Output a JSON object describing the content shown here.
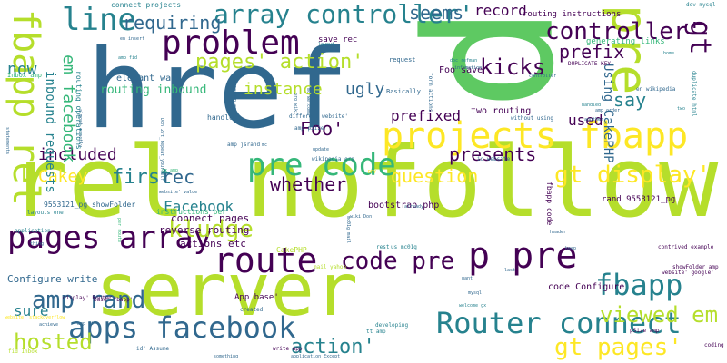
{
  "palette": {
    "dark_purple": "#440154",
    "blue": "#31688e",
    "teal": "#26828e",
    "green": "#35b779",
    "light_green": "#5ec962",
    "lime": "#b5de2b",
    "yellow": "#fde725"
  },
  "words": [
    {
      "text": "rel nofollow",
      "weight": 1.0
    },
    {
      "text": "href",
      "weight": 0.95
    },
    {
      "text": "p",
      "weight": 0.9
    },
    {
      "text": "server",
      "weight": 0.8
    },
    {
      "text": "pre",
      "weight": 0.7
    },
    {
      "text": "projects fbapp",
      "weight": 0.6
    },
    {
      "text": "fbapp rel",
      "weight": 0.55
    },
    {
      "text": "pages array",
      "weight": 0.5
    },
    {
      "text": "route",
      "weight": 0.5
    },
    {
      "text": "p pre",
      "weight": 0.5
    },
    {
      "text": "apps facebook",
      "weight": 0.5
    },
    {
      "text": "Router connect",
      "weight": 0.45
    },
    {
      "text": "problem",
      "weight": 0.45
    },
    {
      "text": "pre code",
      "weight": 0.45
    },
    {
      "text": "line",
      "weight": 0.4
    },
    {
      "text": "array controller'",
      "weight": 0.4
    },
    {
      "text": "fbapp",
      "weight": 0.4
    },
    {
      "text": "gt",
      "weight": 0.4
    },
    {
      "text": "controller'",
      "weight": 0.35
    },
    {
      "text": "code pre",
      "weight": 0.35
    },
    {
      "text": "gt pages'",
      "weight": 0.35
    },
    {
      "text": "gt display'",
      "weight": 0.3
    },
    {
      "text": "amp rand",
      "weight": 0.3
    },
    {
      "text": "kludge",
      "weight": 0.3
    },
    {
      "text": "hosted",
      "weight": 0.3
    },
    {
      "text": "viewed em",
      "weight": 0.3
    },
    {
      "text": "action'",
      "weight": 0.3
    },
    {
      "text": "pages' action'",
      "weight": 0.25
    },
    {
      "text": "Foo'",
      "weight": 0.25
    },
    {
      "text": "seems",
      "weight": 0.25
    },
    {
      "text": "kicks",
      "weight": 0.25
    },
    {
      "text": "prefix",
      "weight": 0.25
    },
    {
      "text": "say",
      "weight": 0.25
    },
    {
      "text": "instance",
      "weight": 0.2
    },
    {
      "text": "requiring",
      "weight": 0.2
    },
    {
      "text": "ugly",
      "weight": 0.2
    },
    {
      "text": "now",
      "weight": 0.2
    },
    {
      "text": "Cakey",
      "weight": 0.2
    },
    {
      "text": "first",
      "weight": 0.2
    },
    {
      "text": "included",
      "weight": 0.2
    },
    {
      "text": "rec",
      "weight": 0.2
    },
    {
      "text": "whether",
      "weight": 0.2
    },
    {
      "text": "presents",
      "weight": 0.2
    },
    {
      "text": "question",
      "weight": 0.2
    },
    {
      "text": "Facebook",
      "weight": 0.2
    },
    {
      "text": "prefixed",
      "weight": 0.2
    },
    {
      "text": "used",
      "weight": 0.2
    },
    {
      "text": "sure",
      "weight": 0.2
    },
    {
      "text": "em facebook",
      "weight": 0.2
    },
    {
      "text": "inbound requests",
      "weight": 0.15
    },
    {
      "text": "Using CakePHP",
      "weight": 0.15
    },
    {
      "text": "record",
      "weight": 0.15
    },
    {
      "text": "routing inbound",
      "weight": 0.12
    },
    {
      "text": "Configure write",
      "weight": 0.12
    },
    {
      "text": "connect pages",
      "weight": 0.12
    },
    {
      "text": "reverse routing",
      "weight": 0.12
    },
    {
      "text": "actions etc",
      "weight": 0.1
    },
    {
      "text": "code Configure",
      "weight": 0.1
    },
    {
      "text": "two routing",
      "weight": 0.1
    },
    {
      "text": "Foo save",
      "weight": 0.1
    },
    {
      "text": "save rec",
      "weight": 0.1
    },
    {
      "text": "bootstrap php",
      "weight": 0.1
    },
    {
      "text": "elegant way",
      "weight": 0.1
    },
    {
      "text": "connect projects",
      "weight": 0.1
    },
    {
      "text": "routing instructions",
      "weight": 0.1
    },
    {
      "text": "generating links",
      "weight": 0.1
    },
    {
      "text": "instructions per",
      "weight": 0.1
    },
    {
      "text": "handle",
      "weight": 0.1
    },
    {
      "text": "routing operations",
      "weight": 0.1
    },
    {
      "text": "9553121_pg showFolder",
      "weight": 0.1
    },
    {
      "text": "rand 9553121_pg",
      "weight": 0.1
    },
    {
      "text": "App base'",
      "weight": 0.1
    },
    {
      "text": "CakePHP",
      "weight": 0.1
    },
    {
      "text": "fbapp code",
      "weight": 0.1
    },
    {
      "text": "request",
      "weight": 0.08
    },
    {
      "text": "Basically",
      "weight": 0.08
    },
    {
      "text": "Inbox amp",
      "weight": 0.08
    },
    {
      "text": "dev mysql",
      "weight": 0.06
    },
    {
      "text": "duplicate html",
      "weight": 0.06
    },
    {
      "text": "DUPLICATE KEY",
      "weight": 0.06
    },
    {
      "text": "en wikipedia",
      "weight": 0.06
    },
    {
      "text": "form actions",
      "weight": 0.06
    },
    {
      "text": "without using",
      "weight": 0.06
    },
    {
      "text": "different website'",
      "weight": 0.06
    },
    {
      "text": "amp jsrand",
      "weight": 0.06
    },
    {
      "text": "amp pSize",
      "weight": 0.06
    },
    {
      "text": "wikipedia org",
      "weight": 0.06
    },
    {
      "text": "id website",
      "weight": 0.06
    },
    {
      "text": "contrived example",
      "weight": 0.06
    },
    {
      "text": "showFolder amp",
      "weight": 0.06
    },
    {
      "text": "website' google'",
      "weight": 0.06
    },
    {
      "text": "base' fbapp'",
      "weight": 0.06
    },
    {
      "text": "display' Router",
      "weight": 0.06
    },
    {
      "text": "layouts one",
      "weight": 0.06
    },
    {
      "text": "application",
      "weight": 0.06
    },
    {
      "text": "mail yahoo",
      "weight": 0.06
    },
    {
      "text": "us mc01g",
      "weight": 0.06
    },
    {
      "text": "rest",
      "weight": 0.06
    },
    {
      "text": "pSize amp",
      "weight": 0.06
    },
    {
      "text": "write App",
      "weight": 0.06
    },
    {
      "text": "developing",
      "weight": 0.06
    },
    {
      "text": "tt amp",
      "weight": 0.06
    },
    {
      "text": "coding",
      "weight": 0.06
    },
    {
      "text": "created",
      "weight": 0.06
    },
    {
      "text": "fid Inbox",
      "weight": 0.06
    },
    {
      "text": "id' Assume",
      "weight": 0.06
    },
    {
      "text": "something",
      "weight": 0.05
    },
    {
      "text": "application Except",
      "weight": 0.05
    },
    {
      "text": "statements",
      "weight": 0.05
    },
    {
      "text": "almost exactly",
      "weight": 0.05
    },
    {
      "text": "Don 27t_repeat_yourself",
      "weight": 0.05
    },
    {
      "text": "doc refman",
      "weight": 0.05
    },
    {
      "text": "infomation",
      "weight": 0.05
    },
    {
      "text": "controller",
      "weight": 0.05
    },
    {
      "text": "amp order",
      "weight": 0.05
    },
    {
      "text": "handled",
      "weight": 0.05
    },
    {
      "text": "another",
      "weight": 0.05
    },
    {
      "text": "wiki Don",
      "weight": 0.05
    },
    {
      "text": "header",
      "weight": 0.05
    },
    {
      "text": "keep",
      "weight": 0.05
    },
    {
      "text": "last",
      "weight": 0.05
    },
    {
      "text": "want",
      "weight": 0.05
    },
    {
      "text": "mysql",
      "weight": 0.05
    },
    {
      "text": "welcome gx",
      "weight": 0.05
    },
    {
      "text": "mc01g mail",
      "weight": 0.05
    },
    {
      "text": "already",
      "weight": 0.05
    },
    {
      "text": "DRY",
      "weight": 0.05
    },
    {
      "text": "thing",
      "weight": 0.05
    },
    {
      "text": "per route",
      "weight": 0.05
    },
    {
      "text": "website' value",
      "weight": 0.05
    },
    {
      "text": "gx amp",
      "weight": 0.05
    },
    {
      "text": "update",
      "weight": 0.05
    },
    {
      "text": "mc",
      "weight": 0.05
    },
    {
      "text": "amp tt",
      "weight": 0.05
    },
    {
      "text": "website' stackoverflow",
      "weight": 0.05
    },
    {
      "text": "achieve",
      "weight": 0.05
    },
    {
      "text": "org wiki",
      "weight": 0.05
    },
    {
      "text": "mc welcome",
      "weight": 0.05
    },
    {
      "text": "refman en",
      "weight": 0.05
    },
    {
      "text": "amp fid",
      "weight": 0.05
    },
    {
      "text": "en insert",
      "weight": 0.05
    },
    {
      "text": "layout",
      "weight": 0.05
    },
    {
      "text": "home",
      "weight": 0.05
    },
    {
      "text": "two",
      "weight": 0.05
    }
  ]
}
